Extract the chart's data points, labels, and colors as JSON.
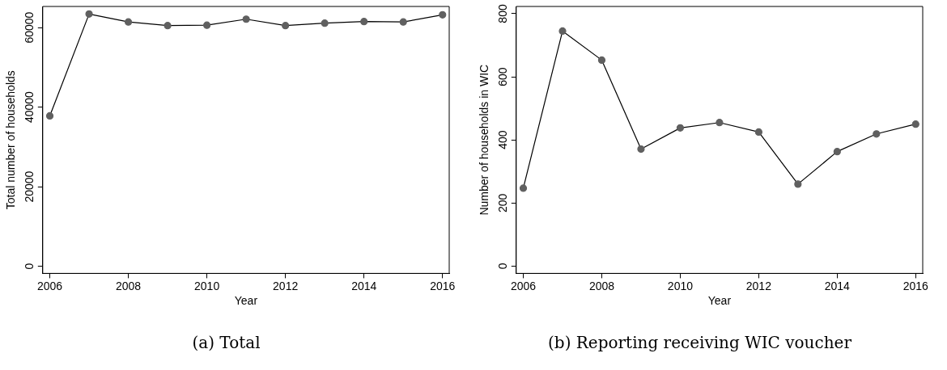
{
  "chart_data": [
    {
      "type": "line",
      "title": "(a) Total",
      "xlabel": "Year",
      "ylabel": "Total number of households",
      "x": [
        2006,
        2007,
        2008,
        2009,
        2010,
        2011,
        2012,
        2013,
        2014,
        2015,
        2016
      ],
      "series": [
        {
          "color": "#606060",
          "values": [
            37800,
            63400,
            61400,
            60500,
            60600,
            62100,
            60500,
            61100,
            61500,
            61400,
            63200
          ]
        }
      ],
      "xlim": [
        2005.82,
        2016.17
      ],
      "xticks": [
        2006,
        2008,
        2010,
        2012,
        2014,
        2016
      ],
      "ylim": [
        -1800,
        65300
      ],
      "yticks": [
        0,
        20000,
        40000,
        60000
      ],
      "grid": false,
      "legend": false,
      "marker": "circle",
      "line_style": "solid"
    },
    {
      "type": "line",
      "title": "(b) Reporting receiving WIC voucher",
      "xlabel": "Year",
      "ylabel": "Number of households in WIC",
      "x": [
        2006,
        2007,
        2008,
        2009,
        2010,
        2011,
        2012,
        2013,
        2014,
        2015,
        2016
      ],
      "series": [
        {
          "color": "#606060",
          "values": [
            247,
            745,
            653,
            371,
            438,
            455,
            425,
            260,
            363,
            419,
            450
          ]
        }
      ],
      "xlim": [
        2005.82,
        2016.18
      ],
      "xticks": [
        2006,
        2008,
        2010,
        2012,
        2014,
        2016
      ],
      "ylim": [
        -23,
        823
      ],
      "yticks": [
        0,
        200,
        400,
        600,
        800
      ],
      "grid": false,
      "legend": false,
      "marker": "circle",
      "line_style": "solid"
    }
  ]
}
